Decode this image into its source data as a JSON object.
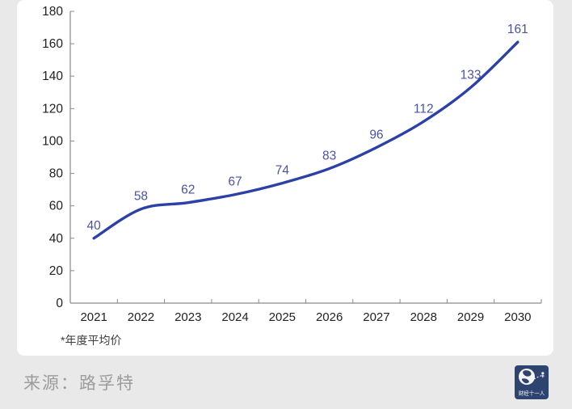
{
  "chart_data": {
    "type": "line",
    "title": "",
    "categories": [
      "2021",
      "2022",
      "2023",
      "2024",
      "2025",
      "2026",
      "2027",
      "2028",
      "2029",
      "2030"
    ],
    "values": [
      40,
      58,
      62,
      67,
      74,
      83,
      96,
      112,
      133,
      161
    ],
    "xlabel": "",
    "ylabel": "",
    "ylim": [
      0,
      180
    ],
    "ytick_step": 20,
    "grid": false,
    "legend": "none",
    "data_labels": true,
    "smooth": true
  },
  "footnote": "*年度平均价",
  "footer": {
    "source": "来源：路孚特",
    "logo_text": "财经十一人"
  },
  "colors": {
    "page_bg": "#e9e9e9",
    "panel_bg": "#ffffff",
    "line": "#2c41a7",
    "data_label": "#4a53a0",
    "axis": "#8a8a8a",
    "tick_label": "#212121",
    "footnote_text": "#3d3d3d",
    "source_text": "#9c9c9c",
    "logo_bg": "#2e4470",
    "logo_fg": "#f5f5f5"
  }
}
